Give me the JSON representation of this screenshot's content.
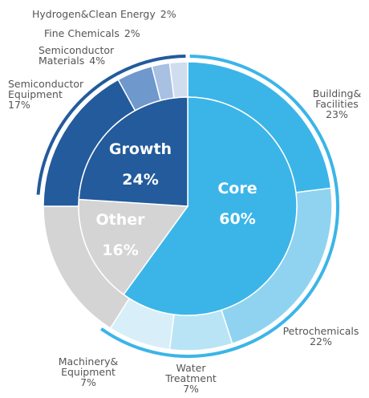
{
  "chart_data": {
    "type": "sunburst",
    "inner": {
      "categories": [
        "Core",
        "Other",
        "Growth"
      ],
      "values": [
        60,
        16,
        24
      ],
      "value_labels": [
        "60%",
        "16%",
        "24%"
      ],
      "colors": [
        "#3bb5e8",
        "#d4d4d4",
        "#235b9c"
      ]
    },
    "outer": {
      "categories": [
        [
          "Building&",
          "Facilities"
        ],
        [
          "Petrochemicals"
        ],
        [
          "Water",
          "Treatment"
        ],
        [
          "Machinery&",
          "Equipment"
        ],
        [],
        [
          "Semiconductor",
          "Equipment"
        ],
        [
          "Semiconductor",
          "Materials"
        ],
        [
          "Fine Chemicals"
        ],
        [
          "Hydrogen&Clean Energy"
        ]
      ],
      "values": [
        23,
        22,
        7,
        7,
        16,
        17,
        4,
        2,
        2
      ],
      "value_labels": [
        "23%",
        "22%",
        "7%",
        "7%",
        null,
        "17%",
        "4%",
        "2%",
        "2%"
      ],
      "colors": [
        "#3bb5e8",
        "#8fd3f0",
        "#b8e4f6",
        "#d8eff9",
        "#d4d4d4",
        "#235b9c",
        "#6f98cc",
        "#a8c0e2",
        "#d0ddef"
      ]
    }
  }
}
